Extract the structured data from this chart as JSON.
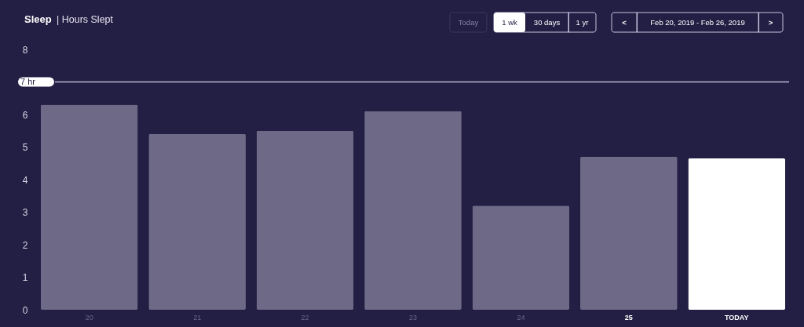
{
  "chart_data": {
    "type": "bar",
    "title": "Sleep",
    "subtitle": "| Hours Slept",
    "categories": [
      "20",
      "21",
      "22",
      "23",
      "24",
      "25",
      "TODAY"
    ],
    "values": [
      6.3,
      5.4,
      5.5,
      6.1,
      3.2,
      4.7,
      4.65
    ],
    "colors": [
      "#6d6987",
      "#6d6987",
      "#6d6987",
      "#6d6987",
      "#6d6987",
      "#6d6987",
      "#ffffff"
    ],
    "ylim": [
      0,
      8
    ],
    "yticks": [
      0,
      1,
      2,
      3,
      4,
      5,
      6,
      8
    ],
    "ref_lines": [
      {
        "axis": "y",
        "value": 7,
        "label": "7 hr",
        "color": "#bcb9d2"
      }
    ],
    "annotations": [
      "Today",
      "1 wk",
      "30 days",
      "1 yr",
      "<",
      "Feb 20, 2019 - Feb 26, 2019",
      ">"
    ]
  }
}
